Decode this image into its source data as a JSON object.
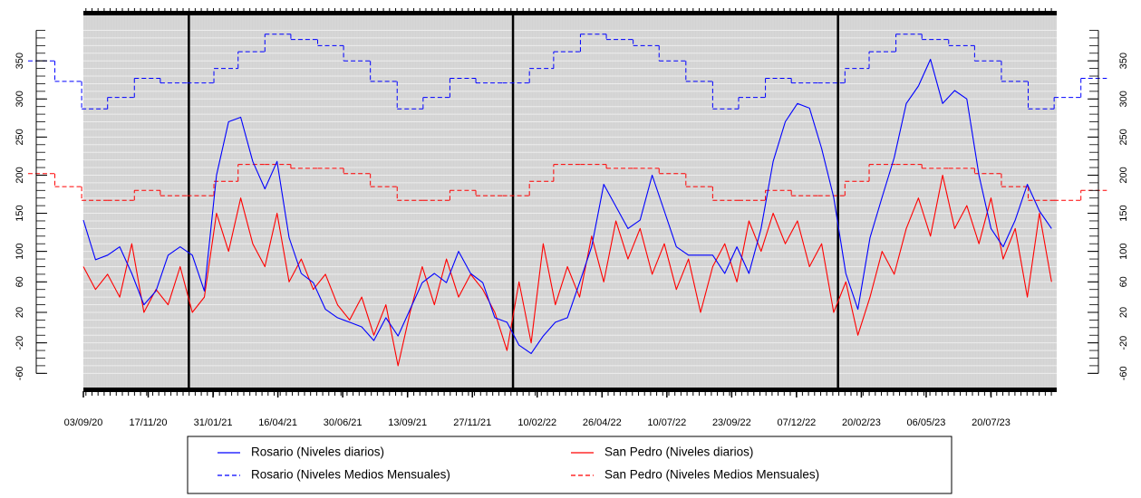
{
  "chart_data": {
    "type": "line",
    "xlim": [
      "03/09/20",
      "04/10/23"
    ],
    "ylim": [
      -81,
      412
    ],
    "yticks": [
      -60,
      -20,
      20,
      60,
      100,
      150,
      200,
      250,
      300,
      350
    ],
    "minor_ytick_step": 10,
    "xticks": [
      "03/09/20",
      "17/11/20",
      "31/01/21",
      "16/04/21",
      "30/06/21",
      "13/09/21",
      "27/11/21",
      "10/02/22",
      "26/04/22",
      "10/07/22",
      "23/09/22",
      "07/12/22",
      "20/02/23",
      "06/05/23",
      "20/07/23"
    ],
    "grid": true,
    "vertical_lines": [
      "03/01/21",
      "13/01/22",
      "24/01/23"
    ],
    "x": [
      "03/09/20",
      "17/09/20",
      "01/10/20",
      "15/10/20",
      "29/10/20",
      "12/11/20",
      "26/11/20",
      "10/12/20",
      "24/12/20",
      "07/01/21",
      "21/01/21",
      "04/02/21",
      "18/02/21",
      "04/03/21",
      "18/03/21",
      "01/04/21",
      "15/04/21",
      "29/04/21",
      "13/05/21",
      "27/05/21",
      "10/06/21",
      "24/06/21",
      "08/07/21",
      "22/07/21",
      "05/08/21",
      "19/08/21",
      "02/09/21",
      "16/09/21",
      "30/09/21",
      "14/10/21",
      "28/10/21",
      "11/11/21",
      "25/11/21",
      "09/12/21",
      "23/12/21",
      "06/01/22",
      "20/01/22",
      "03/02/22",
      "17/02/22",
      "03/03/22",
      "17/03/22",
      "31/03/22",
      "14/04/22",
      "28/04/22",
      "12/05/22",
      "26/05/22",
      "09/06/22",
      "23/06/22",
      "07/07/22",
      "21/07/22",
      "04/08/22",
      "18/08/22",
      "01/09/22",
      "15/09/22",
      "29/09/22",
      "13/10/22",
      "27/10/22",
      "10/11/22",
      "24/11/22",
      "08/12/22",
      "22/12/22",
      "05/01/23",
      "19/01/23",
      "02/02/23",
      "16/02/23",
      "02/03/23",
      "16/03/23",
      "30/03/23",
      "13/04/23",
      "27/04/23",
      "11/05/23",
      "25/05/23",
      "08/06/23",
      "22/06/23",
      "06/07/23",
      "20/07/23",
      "03/08/23",
      "17/08/23",
      "31/08/23",
      "14/09/23",
      "28/09/23"
    ],
    "series": [
      {
        "name": "Rosario (Niveles diarios)",
        "color": "#0000ff",
        "line_style": "solid",
        "values": [
          141,
          89,
          95,
          106,
          71,
          30,
          48,
          95,
          106,
          95,
          48,
          200,
          270,
          276,
          218,
          182,
          218,
          118,
          71,
          59,
          24,
          13,
          7,
          1,
          -17,
          13,
          -11,
          24,
          59,
          71,
          59,
          100,
          71,
          59,
          13,
          7,
          -23,
          -34,
          -11,
          7,
          13,
          59,
          106,
          188,
          159,
          130,
          141,
          200,
          153,
          106,
          95,
          95,
          95,
          71,
          106,
          71,
          130,
          218,
          270,
          294,
          288,
          235,
          171,
          71,
          24,
          118,
          171,
          223,
          294,
          317,
          352,
          294,
          311,
          300,
          200,
          130,
          106,
          141,
          188,
          153,
          130
        ]
      },
      {
        "name": "Rosario (Niveles Medios Mensuales)",
        "color": "#0000ff",
        "line_style": "dashed",
        "x": [
          "01/07/20",
          "01/08/20",
          "01/09/20",
          "01/10/20",
          "01/11/20",
          "01/12/20",
          "01/01/21",
          "01/02/21",
          "01/03/21",
          "01/04/21",
          "01/05/21",
          "01/06/21",
          "01/07/21",
          "01/08/21",
          "01/09/21",
          "01/10/21",
          "01/11/21",
          "01/12/21",
          "01/01/22",
          "01/02/22",
          "01/03/22",
          "01/04/22",
          "01/05/22",
          "01/06/22",
          "01/07/22",
          "01/08/22",
          "01/09/22",
          "01/10/22",
          "01/11/22",
          "01/12/22",
          "01/01/23",
          "01/02/23",
          "01/03/23",
          "01/04/23",
          "01/05/23",
          "01/06/23",
          "01/07/23",
          "01/08/23",
          "01/09/23",
          "01/10/23",
          "01/11/23"
        ],
        "values": [
          350,
          323,
          287,
          302,
          327,
          321,
          321,
          340,
          362,
          385,
          378,
          370,
          350,
          323,
          287,
          302,
          327,
          321,
          321,
          340,
          362,
          385,
          378,
          370,
          350,
          323,
          287,
          302,
          327,
          321,
          321,
          340,
          362,
          385,
          378,
          370,
          350,
          323,
          287,
          302,
          327
        ]
      },
      {
        "name": "San Pedro (Niveles diarios)",
        "color": "#ff0000",
        "line_style": "solid",
        "values": [
          80,
          50,
          70,
          40,
          110,
          20,
          50,
          30,
          80,
          20,
          40,
          150,
          100,
          170,
          110,
          80,
          150,
          60,
          90,
          50,
          70,
          30,
          10,
          40,
          -10,
          30,
          -50,
          20,
          80,
          30,
          90,
          40,
          70,
          50,
          20,
          -30,
          60,
          -20,
          110,
          30,
          80,
          40,
          120,
          60,
          140,
          90,
          130,
          70,
          110,
          50,
          90,
          20,
          80,
          110,
          60,
          140,
          100,
          150,
          110,
          140,
          80,
          110,
          20,
          60,
          -10,
          40,
          100,
          70,
          130,
          170,
          120,
          200,
          130,
          160,
          110,
          170,
          90,
          130,
          40,
          150,
          60
        ]
      },
      {
        "name": "San Pedro (Niveles Medios Mensuales)",
        "color": "#ff0000",
        "line_style": "dashed",
        "x": [
          "01/07/20",
          "01/08/20",
          "01/09/20",
          "01/10/20",
          "01/11/20",
          "01/12/20",
          "01/01/21",
          "01/02/21",
          "01/03/21",
          "01/04/21",
          "01/05/21",
          "01/06/21",
          "01/07/21",
          "01/08/21",
          "01/09/21",
          "01/10/21",
          "01/11/21",
          "01/12/21",
          "01/01/22",
          "01/02/22",
          "01/03/22",
          "01/04/22",
          "01/05/22",
          "01/06/22",
          "01/07/22",
          "01/08/22",
          "01/09/22",
          "01/10/22",
          "01/11/22",
          "01/12/22",
          "01/01/23",
          "01/02/23",
          "01/03/23",
          "01/04/23",
          "01/05/23",
          "01/06/23",
          "01/07/23",
          "01/08/23",
          "01/09/23",
          "01/10/23",
          "01/11/23"
        ],
        "values": [
          202,
          185,
          167,
          167,
          180,
          173,
          173,
          192,
          214,
          214,
          209,
          209,
          202,
          185,
          167,
          167,
          180,
          173,
          173,
          192,
          214,
          214,
          209,
          209,
          202,
          185,
          167,
          167,
          180,
          173,
          173,
          192,
          214,
          214,
          209,
          209,
          202,
          185,
          167,
          167,
          180
        ]
      }
    ]
  }
}
